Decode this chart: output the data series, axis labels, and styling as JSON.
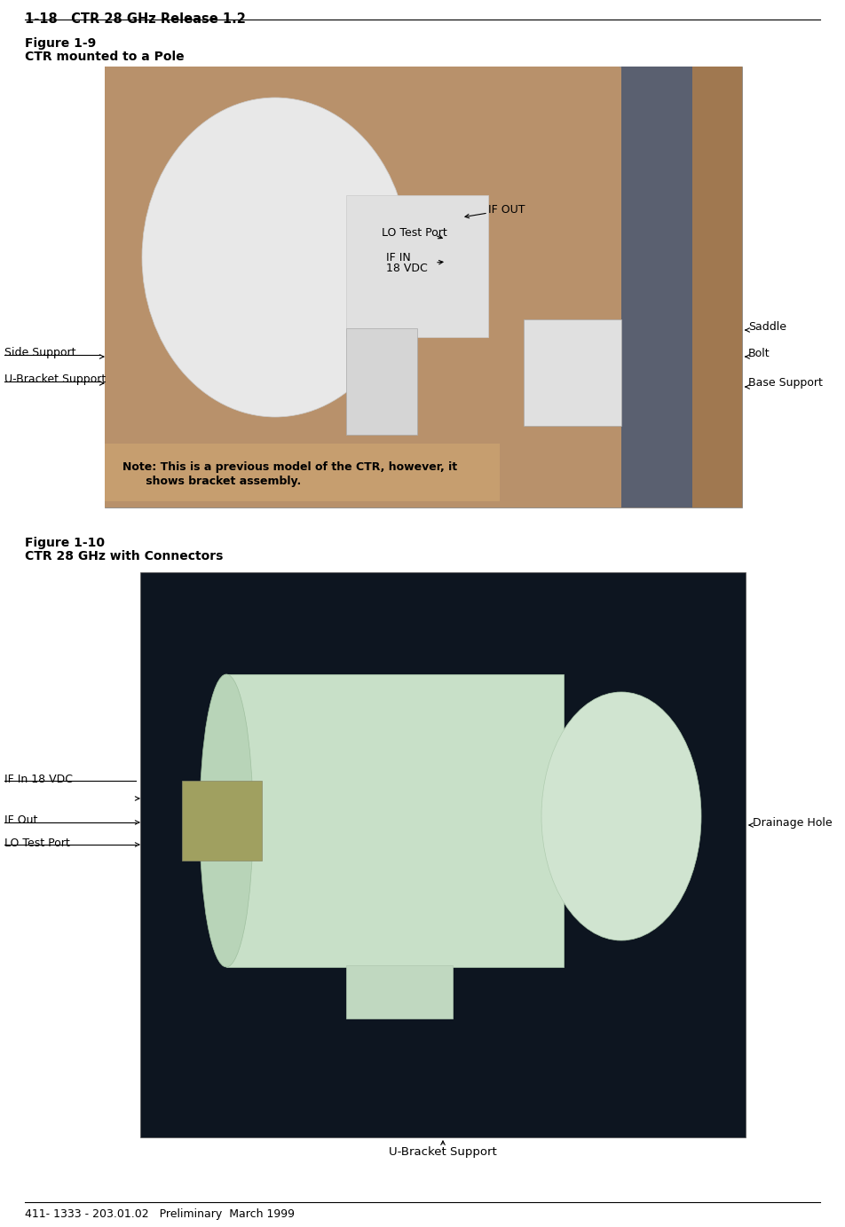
{
  "page_title": "1-18   CTR 28 GHz Release 1.2",
  "footer_text": "411- 1333 - 203.01.02   Preliminary  March 1999",
  "fig1_label": "Figure 1-9",
  "fig1_caption": "CTR mounted to a Pole",
  "fig2_label": "Figure 1-10",
  "fig2_caption": "CTR 28 GHz with Connectors",
  "fig1_note_line1": "Note: This is a previous model of the CTR, however, it",
  "fig1_note_line2": "      shows bracket assembly.",
  "bg_color": "#ffffff",
  "text_color": "#000000",
  "line_color": "#000000",
  "header_fontsize": 10.5,
  "caption_fontsize": 10,
  "annotation_fontsize": 9,
  "note_fontsize": 9,
  "footer_fontsize": 9,
  "img1_bg": "#b8916b",
  "img1_note_bg": "#c09870",
  "img2_bg": "#0d1520",
  "img2_cylinder_color": "#d0e8d0",
  "img2_dark_bg": "#060c14"
}
